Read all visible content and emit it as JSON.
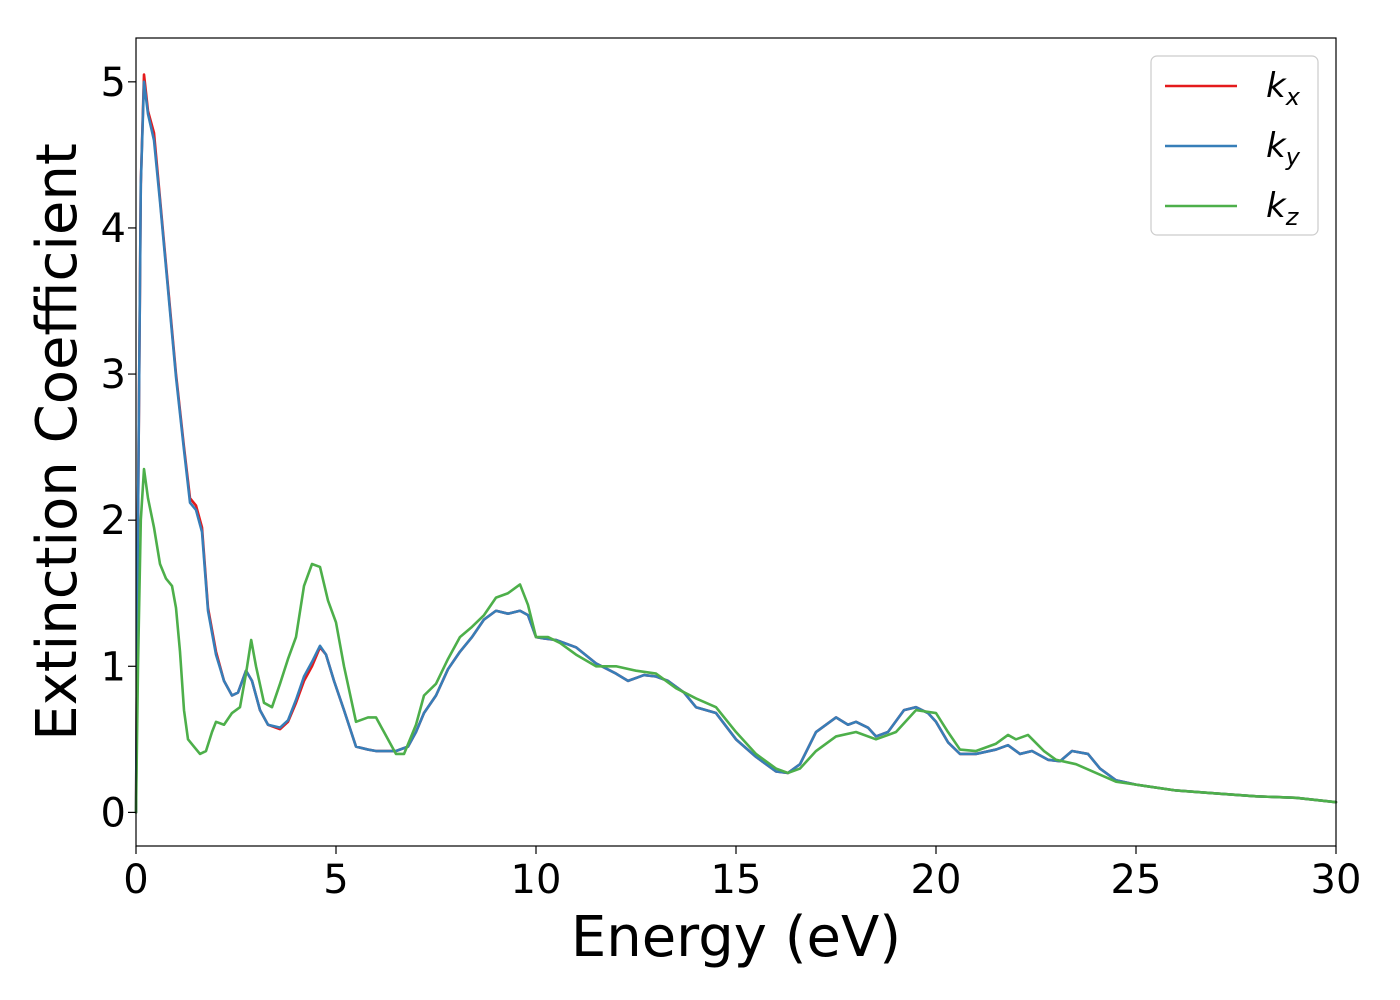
{
  "chart_data": {
    "type": "line",
    "title": "",
    "xlabel": "Energy (eV)",
    "ylabel": "Extinction Coefficient",
    "xlim": [
      0,
      30
    ],
    "ylim": [
      -0.23,
      5.3
    ],
    "xticks": [
      0,
      5,
      10,
      15,
      20,
      25,
      30
    ],
    "xtick_labels": [
      "0",
      "5",
      "10",
      "15",
      "20",
      "25",
      "30"
    ],
    "yticks": [
      0,
      1,
      2,
      3,
      4,
      5
    ],
    "ytick_labels": [
      "0",
      "1",
      "2",
      "3",
      "4",
      "5"
    ],
    "grid": false,
    "legend": {
      "position": "top-right",
      "entries": [
        {
          "base": "k",
          "sub": "x",
          "color": "#e41a1c"
        },
        {
          "base": "k",
          "sub": "y",
          "color": "#377eb8"
        },
        {
          "base": "k",
          "sub": "z",
          "color": "#4daf4a"
        }
      ]
    },
    "series": [
      {
        "name": "k_x",
        "color": "#e41a1c",
        "points": [
          [
            0,
            0
          ],
          [
            0.05,
            2.0
          ],
          [
            0.12,
            4.3
          ],
          [
            0.2,
            5.05
          ],
          [
            0.3,
            4.8
          ],
          [
            0.45,
            4.65
          ],
          [
            0.6,
            4.2
          ],
          [
            0.8,
            3.6
          ],
          [
            1.0,
            3.0
          ],
          [
            1.2,
            2.5
          ],
          [
            1.35,
            2.15
          ],
          [
            1.5,
            2.1
          ],
          [
            1.65,
            1.95
          ],
          [
            1.8,
            1.4
          ],
          [
            2.0,
            1.1
          ],
          [
            2.2,
            0.9
          ],
          [
            2.4,
            0.8
          ],
          [
            2.55,
            0.82
          ],
          [
            2.75,
            0.97
          ],
          [
            2.9,
            0.9
          ],
          [
            3.1,
            0.7
          ],
          [
            3.3,
            0.6
          ],
          [
            3.6,
            0.57
          ],
          [
            3.8,
            0.62
          ],
          [
            4.0,
            0.75
          ],
          [
            4.2,
            0.9
          ],
          [
            4.4,
            1.0
          ],
          [
            4.6,
            1.13
          ],
          [
            4.75,
            1.08
          ],
          [
            4.95,
            0.9
          ],
          [
            5.2,
            0.7
          ],
          [
            5.5,
            0.45
          ],
          [
            5.8,
            0.43
          ],
          [
            6.0,
            0.42
          ],
          [
            6.2,
            0.42
          ],
          [
            6.5,
            0.42
          ],
          [
            6.8,
            0.45
          ],
          [
            7.0,
            0.55
          ],
          [
            7.2,
            0.68
          ],
          [
            7.5,
            0.8
          ],
          [
            7.8,
            0.98
          ],
          [
            8.1,
            1.1
          ],
          [
            8.4,
            1.2
          ],
          [
            8.7,
            1.32
          ],
          [
            9.0,
            1.38
          ],
          [
            9.3,
            1.36
          ],
          [
            9.6,
            1.38
          ],
          [
            9.8,
            1.35
          ],
          [
            10.0,
            1.2
          ],
          [
            10.2,
            1.19
          ],
          [
            10.5,
            1.18
          ],
          [
            11.0,
            1.13
          ],
          [
            11.5,
            1.02
          ],
          [
            12.0,
            0.95
          ],
          [
            12.3,
            0.9
          ],
          [
            12.7,
            0.94
          ],
          [
            13.0,
            0.93
          ],
          [
            13.3,
            0.9
          ],
          [
            13.7,
            0.82
          ],
          [
            14.0,
            0.72
          ],
          [
            14.5,
            0.68
          ],
          [
            15.0,
            0.5
          ],
          [
            15.5,
            0.38
          ],
          [
            16.0,
            0.28
          ],
          [
            16.3,
            0.27
          ],
          [
            16.6,
            0.33
          ],
          [
            17.0,
            0.55
          ],
          [
            17.5,
            0.65
          ],
          [
            17.8,
            0.6
          ],
          [
            18.0,
            0.62
          ],
          [
            18.3,
            0.58
          ],
          [
            18.5,
            0.52
          ],
          [
            18.8,
            0.55
          ],
          [
            19.2,
            0.7
          ],
          [
            19.5,
            0.72
          ],
          [
            19.8,
            0.68
          ],
          [
            20.0,
            0.62
          ],
          [
            20.3,
            0.48
          ],
          [
            20.6,
            0.4
          ],
          [
            21.0,
            0.4
          ],
          [
            21.5,
            0.43
          ],
          [
            21.8,
            0.46
          ],
          [
            22.1,
            0.4
          ],
          [
            22.4,
            0.42
          ],
          [
            22.8,
            0.36
          ],
          [
            23.1,
            0.35
          ],
          [
            23.4,
            0.42
          ],
          [
            23.8,
            0.4
          ],
          [
            24.1,
            0.3
          ],
          [
            24.5,
            0.22
          ],
          [
            25.0,
            0.19
          ],
          [
            26.0,
            0.15
          ],
          [
            27.0,
            0.13
          ],
          [
            28.0,
            0.11
          ],
          [
            29.0,
            0.1
          ],
          [
            30.0,
            0.07
          ]
        ]
      },
      {
        "name": "k_y",
        "color": "#377eb8",
        "points": [
          [
            0,
            0
          ],
          [
            0.05,
            2.0
          ],
          [
            0.12,
            4.3
          ],
          [
            0.2,
            5.0
          ],
          [
            0.3,
            4.78
          ],
          [
            0.45,
            4.6
          ],
          [
            0.6,
            4.18
          ],
          [
            0.8,
            3.58
          ],
          [
            1.0,
            2.98
          ],
          [
            1.2,
            2.48
          ],
          [
            1.35,
            2.12
          ],
          [
            1.5,
            2.07
          ],
          [
            1.65,
            1.92
          ],
          [
            1.8,
            1.38
          ],
          [
            2.0,
            1.08
          ],
          [
            2.2,
            0.9
          ],
          [
            2.4,
            0.8
          ],
          [
            2.55,
            0.82
          ],
          [
            2.75,
            0.97
          ],
          [
            2.9,
            0.9
          ],
          [
            3.1,
            0.7
          ],
          [
            3.3,
            0.6
          ],
          [
            3.6,
            0.58
          ],
          [
            3.8,
            0.63
          ],
          [
            4.0,
            0.77
          ],
          [
            4.2,
            0.93
          ],
          [
            4.4,
            1.03
          ],
          [
            4.6,
            1.14
          ],
          [
            4.75,
            1.08
          ],
          [
            4.95,
            0.9
          ],
          [
            5.2,
            0.7
          ],
          [
            5.5,
            0.45
          ],
          [
            5.8,
            0.43
          ],
          [
            6.0,
            0.42
          ],
          [
            6.2,
            0.42
          ],
          [
            6.5,
            0.42
          ],
          [
            6.8,
            0.45
          ],
          [
            7.0,
            0.55
          ],
          [
            7.2,
            0.68
          ],
          [
            7.5,
            0.8
          ],
          [
            7.8,
            0.98
          ],
          [
            8.1,
            1.1
          ],
          [
            8.4,
            1.2
          ],
          [
            8.7,
            1.32
          ],
          [
            9.0,
            1.38
          ],
          [
            9.3,
            1.36
          ],
          [
            9.6,
            1.38
          ],
          [
            9.8,
            1.35
          ],
          [
            10.0,
            1.2
          ],
          [
            10.2,
            1.19
          ],
          [
            10.5,
            1.18
          ],
          [
            11.0,
            1.13
          ],
          [
            11.5,
            1.02
          ],
          [
            12.0,
            0.95
          ],
          [
            12.3,
            0.9
          ],
          [
            12.7,
            0.94
          ],
          [
            13.0,
            0.93
          ],
          [
            13.3,
            0.9
          ],
          [
            13.7,
            0.82
          ],
          [
            14.0,
            0.72
          ],
          [
            14.5,
            0.68
          ],
          [
            15.0,
            0.5
          ],
          [
            15.5,
            0.38
          ],
          [
            16.0,
            0.28
          ],
          [
            16.3,
            0.27
          ],
          [
            16.6,
            0.33
          ],
          [
            17.0,
            0.55
          ],
          [
            17.5,
            0.65
          ],
          [
            17.8,
            0.6
          ],
          [
            18.0,
            0.62
          ],
          [
            18.3,
            0.58
          ],
          [
            18.5,
            0.52
          ],
          [
            18.8,
            0.55
          ],
          [
            19.2,
            0.7
          ],
          [
            19.5,
            0.72
          ],
          [
            19.8,
            0.68
          ],
          [
            20.0,
            0.62
          ],
          [
            20.3,
            0.48
          ],
          [
            20.6,
            0.4
          ],
          [
            21.0,
            0.4
          ],
          [
            21.5,
            0.43
          ],
          [
            21.8,
            0.46
          ],
          [
            22.1,
            0.4
          ],
          [
            22.4,
            0.42
          ],
          [
            22.8,
            0.36
          ],
          [
            23.1,
            0.35
          ],
          [
            23.4,
            0.42
          ],
          [
            23.8,
            0.4
          ],
          [
            24.1,
            0.3
          ],
          [
            24.5,
            0.22
          ],
          [
            25.0,
            0.19
          ],
          [
            26.0,
            0.15
          ],
          [
            27.0,
            0.13
          ],
          [
            28.0,
            0.11
          ],
          [
            29.0,
            0.1
          ],
          [
            30.0,
            0.07
          ]
        ]
      },
      {
        "name": "k_z",
        "color": "#4daf4a",
        "points": [
          [
            0,
            0
          ],
          [
            0.05,
            1.0
          ],
          [
            0.12,
            2.0
          ],
          [
            0.2,
            2.35
          ],
          [
            0.3,
            2.15
          ],
          [
            0.45,
            1.95
          ],
          [
            0.6,
            1.7
          ],
          [
            0.75,
            1.6
          ],
          [
            0.9,
            1.55
          ],
          [
            1.0,
            1.4
          ],
          [
            1.1,
            1.1
          ],
          [
            1.2,
            0.7
          ],
          [
            1.3,
            0.5
          ],
          [
            1.45,
            0.45
          ],
          [
            1.6,
            0.4
          ],
          [
            1.75,
            0.42
          ],
          [
            1.9,
            0.55
          ],
          [
            2.0,
            0.62
          ],
          [
            2.2,
            0.6
          ],
          [
            2.4,
            0.68
          ],
          [
            2.6,
            0.72
          ],
          [
            2.75,
            0.95
          ],
          [
            2.88,
            1.18
          ],
          [
            3.0,
            1.0
          ],
          [
            3.2,
            0.75
          ],
          [
            3.4,
            0.72
          ],
          [
            3.6,
            0.88
          ],
          [
            3.8,
            1.05
          ],
          [
            4.0,
            1.2
          ],
          [
            4.2,
            1.55
          ],
          [
            4.4,
            1.7
          ],
          [
            4.6,
            1.68
          ],
          [
            4.8,
            1.45
          ],
          [
            5.0,
            1.3
          ],
          [
            5.2,
            1.0
          ],
          [
            5.5,
            0.62
          ],
          [
            5.8,
            0.65
          ],
          [
            6.0,
            0.65
          ],
          [
            6.2,
            0.55
          ],
          [
            6.5,
            0.4
          ],
          [
            6.7,
            0.4
          ],
          [
            7.0,
            0.6
          ],
          [
            7.2,
            0.8
          ],
          [
            7.5,
            0.88
          ],
          [
            7.8,
            1.05
          ],
          [
            8.1,
            1.2
          ],
          [
            8.4,
            1.27
          ],
          [
            8.7,
            1.35
          ],
          [
            9.0,
            1.47
          ],
          [
            9.3,
            1.5
          ],
          [
            9.6,
            1.56
          ],
          [
            9.8,
            1.42
          ],
          [
            10.0,
            1.2
          ],
          [
            10.3,
            1.2
          ],
          [
            10.6,
            1.16
          ],
          [
            11.0,
            1.08
          ],
          [
            11.5,
            1.0
          ],
          [
            12.0,
            1.0
          ],
          [
            12.5,
            0.97
          ],
          [
            13.0,
            0.95
          ],
          [
            13.5,
            0.85
          ],
          [
            14.0,
            0.78
          ],
          [
            14.5,
            0.72
          ],
          [
            15.0,
            0.55
          ],
          [
            15.5,
            0.4
          ],
          [
            16.0,
            0.3
          ],
          [
            16.3,
            0.27
          ],
          [
            16.6,
            0.3
          ],
          [
            17.0,
            0.42
          ],
          [
            17.5,
            0.52
          ],
          [
            18.0,
            0.55
          ],
          [
            18.5,
            0.5
          ],
          [
            19.0,
            0.55
          ],
          [
            19.5,
            0.7
          ],
          [
            20.0,
            0.68
          ],
          [
            20.3,
            0.55
          ],
          [
            20.6,
            0.43
          ],
          [
            21.0,
            0.42
          ],
          [
            21.5,
            0.47
          ],
          [
            21.8,
            0.53
          ],
          [
            22.0,
            0.5
          ],
          [
            22.3,
            0.53
          ],
          [
            22.7,
            0.42
          ],
          [
            23.0,
            0.36
          ],
          [
            23.5,
            0.33
          ],
          [
            24.0,
            0.27
          ],
          [
            24.5,
            0.21
          ],
          [
            25.0,
            0.19
          ],
          [
            26.0,
            0.15
          ],
          [
            27.0,
            0.13
          ],
          [
            28.0,
            0.11
          ],
          [
            29.0,
            0.1
          ],
          [
            30.0,
            0.07
          ]
        ]
      }
    ]
  }
}
